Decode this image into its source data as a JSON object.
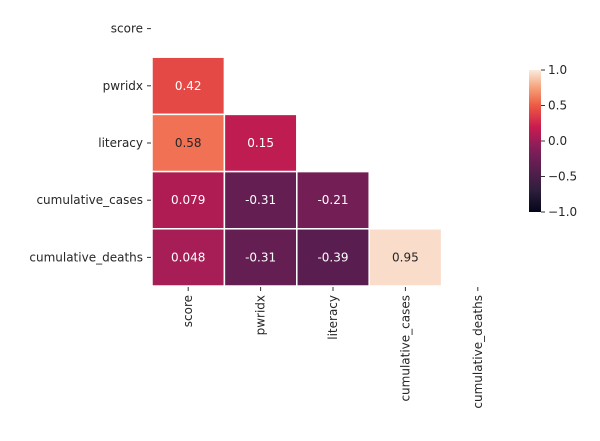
{
  "chart_data": {
    "type": "heatmap",
    "row_labels": [
      "score",
      "pwridx",
      "literacy",
      "cumulative_cases",
      "cumulative_deaths"
    ],
    "col_labels": [
      "score",
      "pwridx",
      "literacy",
      "cumulative_cases",
      "cumulative_deaths"
    ],
    "cells": [
      {
        "row": 1,
        "col": 0,
        "value": 0.42,
        "label": "0.42"
      },
      {
        "row": 2,
        "col": 0,
        "value": 0.58,
        "label": "0.58"
      },
      {
        "row": 2,
        "col": 1,
        "value": 0.15,
        "label": "0.15"
      },
      {
        "row": 3,
        "col": 0,
        "value": 0.079,
        "label": "0.079"
      },
      {
        "row": 3,
        "col": 1,
        "value": -0.31,
        "label": "-0.31"
      },
      {
        "row": 3,
        "col": 2,
        "value": -0.21,
        "label": "-0.21"
      },
      {
        "row": 4,
        "col": 0,
        "value": 0.048,
        "label": "0.048"
      },
      {
        "row": 4,
        "col": 1,
        "value": -0.31,
        "label": "-0.31"
      },
      {
        "row": 4,
        "col": 2,
        "value": -0.39,
        "label": "-0.39"
      },
      {
        "row": 4,
        "col": 3,
        "value": 0.95,
        "label": "0.95"
      }
    ],
    "colorbar": {
      "vmin": -1.0,
      "vmax": 1.0,
      "ticks": [
        1.0,
        0.5,
        0.0,
        -0.5,
        -1.0
      ],
      "tick_labels": [
        "1.0",
        "0.5",
        "0.0",
        "−0.5",
        "−1.0"
      ]
    },
    "colormap": "rocket",
    "mask": "upper-triangle-including-diagonal",
    "grid": false,
    "title": "",
    "xlabel": "",
    "ylabel": ""
  }
}
